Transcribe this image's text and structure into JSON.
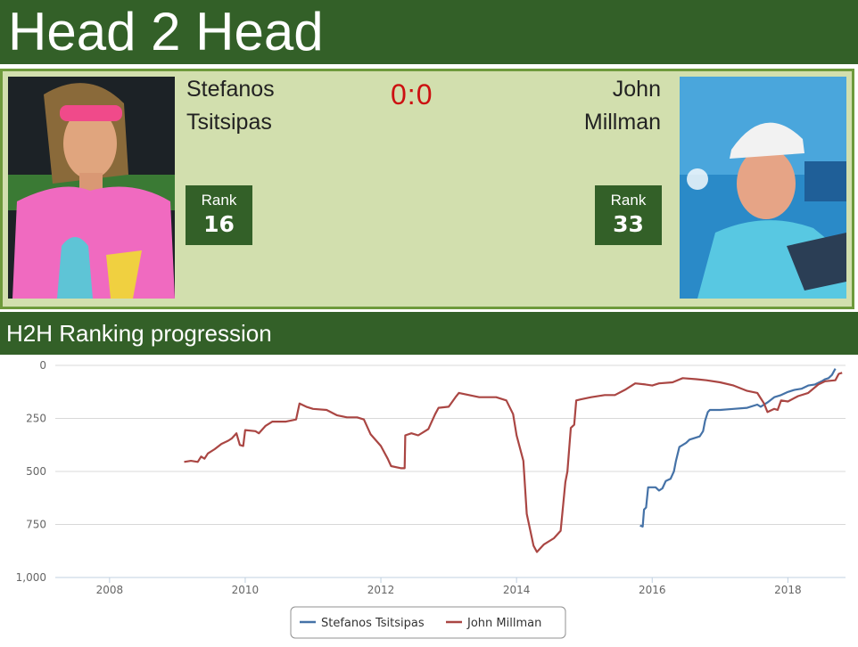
{
  "header": {
    "title": "Head 2 Head"
  },
  "player1": {
    "name_line1": "Stefanos",
    "name_line2": "Tsitsipas",
    "rank_label": "Rank",
    "rank": "16"
  },
  "player2": {
    "name_line1": "John",
    "name_line2": "Millman",
    "rank_label": "Rank",
    "rank": "33"
  },
  "score": "0:0",
  "section": {
    "title": "H2H Ranking progression"
  },
  "colors": {
    "theme": "#336028",
    "panel": "#d2dfae",
    "score": "#cc1111",
    "player1": "#4572a7",
    "player2": "#aa4643"
  },
  "chart_data": {
    "type": "line",
    "title": "",
    "xlabel": "",
    "ylabel": "",
    "x_ticks": [
      "2008",
      "2010",
      "2012",
      "2014",
      "2016",
      "2018"
    ],
    "y_ticks": [
      "0",
      "250",
      "500",
      "750",
      "1,000"
    ],
    "xlim": [
      2007.2,
      2018.85
    ],
    "ylim": [
      0,
      1000
    ],
    "y_reversed": true,
    "grid": true,
    "legend_position": "bottom-center",
    "series": [
      {
        "name": "Stefanos Tsitsipas",
        "color": "#4572a7",
        "points": [
          [
            2015.82,
            755
          ],
          [
            2015.86,
            760
          ],
          [
            2015.88,
            680
          ],
          [
            2015.91,
            670
          ],
          [
            2015.94,
            575
          ],
          [
            2016.05,
            575
          ],
          [
            2016.1,
            590
          ],
          [
            2016.15,
            580
          ],
          [
            2016.2,
            545
          ],
          [
            2016.27,
            535
          ],
          [
            2016.32,
            500
          ],
          [
            2016.35,
            450
          ],
          [
            2016.4,
            385
          ],
          [
            2016.5,
            365
          ],
          [
            2016.55,
            350
          ],
          [
            2016.7,
            335
          ],
          [
            2016.75,
            310
          ],
          [
            2016.78,
            260
          ],
          [
            2016.82,
            220
          ],
          [
            2016.85,
            210
          ],
          [
            2017.0,
            210
          ],
          [
            2017.2,
            205
          ],
          [
            2017.4,
            200
          ],
          [
            2017.55,
            185
          ],
          [
            2017.6,
            195
          ],
          [
            2017.7,
            175
          ],
          [
            2017.8,
            150
          ],
          [
            2017.9,
            140
          ],
          [
            2018.0,
            125
          ],
          [
            2018.1,
            115
          ],
          [
            2018.2,
            110
          ],
          [
            2018.3,
            95
          ],
          [
            2018.4,
            90
          ],
          [
            2018.5,
            75
          ],
          [
            2018.55,
            65
          ],
          [
            2018.6,
            60
          ],
          [
            2018.65,
            45
          ],
          [
            2018.7,
            15
          ]
        ]
      },
      {
        "name": "John Millman",
        "color": "#aa4643",
        "points": [
          [
            2009.1,
            455
          ],
          [
            2009.2,
            450
          ],
          [
            2009.3,
            455
          ],
          [
            2009.35,
            430
          ],
          [
            2009.4,
            440
          ],
          [
            2009.45,
            415
          ],
          [
            2009.55,
            395
          ],
          [
            2009.65,
            370
          ],
          [
            2009.75,
            355
          ],
          [
            2009.8,
            345
          ],
          [
            2009.87,
            320
          ],
          [
            2009.92,
            375
          ],
          [
            2009.97,
            380
          ],
          [
            2010.0,
            305
          ],
          [
            2010.15,
            310
          ],
          [
            2010.2,
            320
          ],
          [
            2010.3,
            285
          ],
          [
            2010.4,
            265
          ],
          [
            2010.6,
            265
          ],
          [
            2010.75,
            255
          ],
          [
            2010.8,
            180
          ],
          [
            2010.9,
            195
          ],
          [
            2011.0,
            205
          ],
          [
            2011.2,
            210
          ],
          [
            2011.35,
            235
          ],
          [
            2011.5,
            245
          ],
          [
            2011.65,
            245
          ],
          [
            2011.75,
            255
          ],
          [
            2011.85,
            325
          ],
          [
            2012.0,
            380
          ],
          [
            2012.1,
            440
          ],
          [
            2012.15,
            475
          ],
          [
            2012.3,
            485
          ],
          [
            2012.35,
            485
          ],
          [
            2012.36,
            330
          ],
          [
            2012.45,
            320
          ],
          [
            2012.55,
            330
          ],
          [
            2012.65,
            310
          ],
          [
            2012.7,
            300
          ],
          [
            2012.8,
            230
          ],
          [
            2012.85,
            200
          ],
          [
            2013.0,
            195
          ],
          [
            2013.1,
            150
          ],
          [
            2013.15,
            130
          ],
          [
            2013.3,
            140
          ],
          [
            2013.45,
            150
          ],
          [
            2013.7,
            150
          ],
          [
            2013.85,
            165
          ],
          [
            2013.95,
            230
          ],
          [
            2014.0,
            330
          ],
          [
            2014.1,
            450
          ],
          [
            2014.15,
            700
          ],
          [
            2014.25,
            850
          ],
          [
            2014.3,
            880
          ],
          [
            2014.4,
            845
          ],
          [
            2014.55,
            815
          ],
          [
            2014.65,
            780
          ],
          [
            2014.72,
            550
          ],
          [
            2014.75,
            500
          ],
          [
            2014.8,
            295
          ],
          [
            2014.85,
            280
          ],
          [
            2014.88,
            165
          ],
          [
            2014.95,
            160
          ],
          [
            2015.1,
            150
          ],
          [
            2015.3,
            140
          ],
          [
            2015.45,
            140
          ],
          [
            2015.6,
            115
          ],
          [
            2015.75,
            85
          ],
          [
            2015.9,
            90
          ],
          [
            2016.0,
            95
          ],
          [
            2016.1,
            85
          ],
          [
            2016.3,
            80
          ],
          [
            2016.45,
            60
          ],
          [
            2016.65,
            65
          ],
          [
            2016.8,
            70
          ],
          [
            2017.0,
            80
          ],
          [
            2017.2,
            95
          ],
          [
            2017.4,
            120
          ],
          [
            2017.55,
            130
          ],
          [
            2017.6,
            155
          ],
          [
            2017.65,
            180
          ],
          [
            2017.7,
            220
          ],
          [
            2017.8,
            205
          ],
          [
            2017.85,
            210
          ],
          [
            2017.9,
            165
          ],
          [
            2018.0,
            170
          ],
          [
            2018.15,
            145
          ],
          [
            2018.3,
            130
          ],
          [
            2018.45,
            90
          ],
          [
            2018.55,
            75
          ],
          [
            2018.7,
            70
          ],
          [
            2018.75,
            40
          ],
          [
            2018.8,
            35
          ]
        ]
      }
    ]
  }
}
